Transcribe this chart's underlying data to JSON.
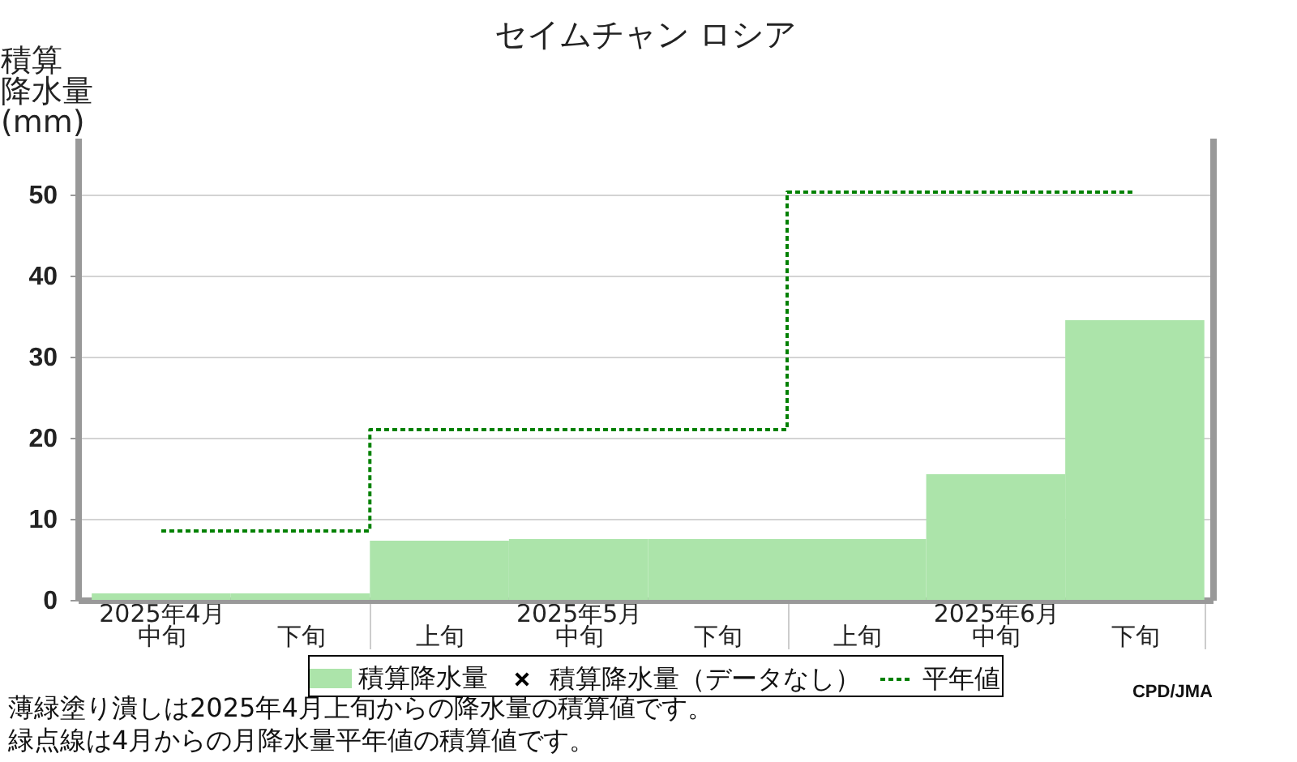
{
  "chart_data": {
    "type": "bar",
    "title": "セイムチャン ロシア",
    "ylabel": "積算降水量(mm)",
    "categories": [
      "2025年4月中旬",
      "下旬",
      "上旬",
      "2025年5月中旬",
      "下旬",
      "上旬",
      "2025年6月中旬",
      "下旬"
    ],
    "series": [
      {
        "name": "積算降水量",
        "color": "#ace4aa",
        "values": [
          0.8,
          0.8,
          7.3,
          7.5,
          7.5,
          7.5,
          15.5,
          34.5
        ]
      },
      {
        "name": "積算降水量（データなし）",
        "type": "scatter",
        "marker": "cross",
        "color": "#000000",
        "values": [
          null,
          null,
          null,
          null,
          null,
          null,
          null,
          null
        ]
      },
      {
        "name": "平年値",
        "type": "step",
        "line_style": "dotted",
        "color": "#008000",
        "values": [
          8.5,
          8.5,
          21.0,
          21.0,
          21.0,
          50.3,
          50.3,
          50.3
        ]
      }
    ],
    "ylim": [
      0,
      57
    ],
    "yticks": [
      0,
      10,
      20,
      30,
      40,
      50
    ],
    "grid": "y",
    "legend": "bottom",
    "annotations": [
      "薄緑塗り潰しは2025年4月上旬からの降水量の積算値です。",
      "緑点線は4月からの月降水量平年値の積算値です。",
      "CPD/JMA"
    ]
  }
}
